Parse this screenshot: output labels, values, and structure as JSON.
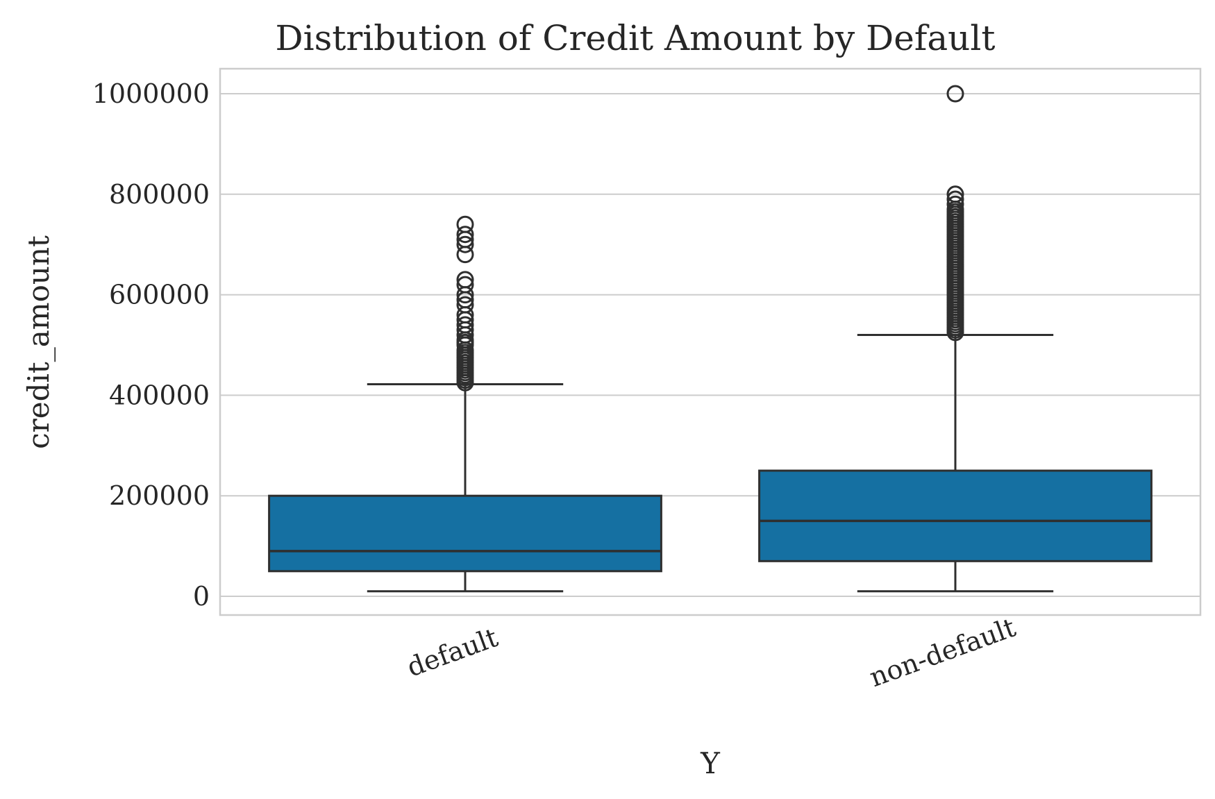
{
  "chart_data": {
    "type": "box",
    "title": "Distribution of Credit Amount by Default",
    "xlabel": "Y",
    "ylabel": "credit_amount",
    "ylim": [
      -40000,
      1050000
    ],
    "yticks": [
      0,
      200000,
      400000,
      600000,
      800000,
      1000000
    ],
    "ytick_labels": [
      "0",
      "200000",
      "400000",
      "600000",
      "800000",
      "1000000"
    ],
    "grid": true,
    "box_color": "#1570a2",
    "categories": [
      "default",
      "non-default"
    ],
    "boxes": [
      {
        "category": "default",
        "whisker_low": 10000,
        "q1": 50000,
        "median": 90000,
        "q3": 200000,
        "whisker_high": 422000,
        "outliers": [
          425000,
          430000,
          435000,
          440000,
          445000,
          450000,
          455000,
          460000,
          465000,
          470000,
          475000,
          480000,
          485000,
          490000,
          500000,
          505000,
          510000,
          520000,
          530000,
          540000,
          550000,
          560000,
          580000,
          590000,
          600000,
          620000,
          630000,
          680000,
          700000,
          710000,
          720000,
          740000
        ]
      },
      {
        "category": "non-default",
        "whisker_low": 10000,
        "q1": 70000,
        "median": 150000,
        "q3": 250000,
        "whisker_high": 520000,
        "outliers": [
          525000,
          530000,
          535000,
          540000,
          545000,
          550000,
          555000,
          560000,
          565000,
          570000,
          575000,
          580000,
          585000,
          590000,
          595000,
          600000,
          605000,
          610000,
          615000,
          620000,
          625000,
          630000,
          635000,
          640000,
          645000,
          650000,
          655000,
          660000,
          665000,
          670000,
          675000,
          680000,
          685000,
          690000,
          695000,
          700000,
          705000,
          710000,
          715000,
          720000,
          725000,
          730000,
          735000,
          740000,
          745000,
          750000,
          755000,
          760000,
          765000,
          770000,
          780000,
          790000,
          800000,
          1000000
        ]
      }
    ]
  }
}
